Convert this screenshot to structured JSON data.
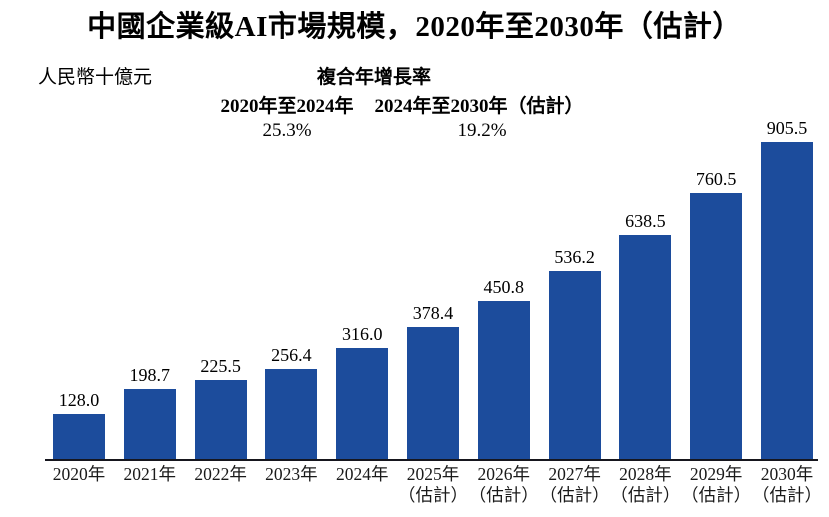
{
  "title": "中國企業級AI市場規模，2020年至2030年（估計）",
  "unit_label": "人民幣十億元",
  "cagr": {
    "header": "複合年增長率",
    "periods": [
      {
        "label": "2020年至2024年",
        "value": "25.3%"
      },
      {
        "label": "2024年至2030年（估計）",
        "value": "19.2%"
      }
    ]
  },
  "colors": {
    "bar": "#1c4c9c",
    "axis": "#16161e",
    "text": "#000000"
  },
  "chart_data": {
    "type": "bar",
    "title": "中國企業級AI市場規模，2020年至2030年（估計）",
    "ylabel": "人民幣十億元",
    "xlabel": "",
    "categories": [
      "2020年",
      "2021年",
      "2022年",
      "2023年",
      "2024年",
      "2025年（估計）",
      "2026年（估計）",
      "2027年（估計）",
      "2028年（估計）",
      "2029年（估計）",
      "2030年（估計）"
    ],
    "category_line1": [
      "2020年",
      "2021年",
      "2022年",
      "2023年",
      "2024年",
      "2025年",
      "2026年",
      "2027年",
      "2028年",
      "2029年",
      "2030年"
    ],
    "category_line2": [
      "",
      "",
      "",
      "",
      "",
      "（估計）",
      "（估計）",
      "（估計）",
      "（估計）",
      "（估計）",
      "（估計）"
    ],
    "values": [
      128.0,
      198.7,
      225.5,
      256.4,
      316.0,
      378.4,
      450.8,
      536.2,
      638.5,
      760.5,
      905.5
    ],
    "value_labels": [
      "128.0",
      "198.7",
      "225.5",
      "256.4",
      "316.0",
      "378.4",
      "450.8",
      "536.2",
      "638.5",
      "760.5",
      "905.5"
    ],
    "annotations": {
      "cagr_header": "複合年增長率",
      "cagr": [
        {
          "period": "2020年至2024年",
          "value_pct": 25.3
        },
        {
          "period": "2024年至2030年（估計）",
          "value_pct": 19.2
        }
      ]
    },
    "ylim": [
      0,
      905.5
    ],
    "grid": false,
    "legend": false,
    "bar_color": "#1c4c9c"
  }
}
